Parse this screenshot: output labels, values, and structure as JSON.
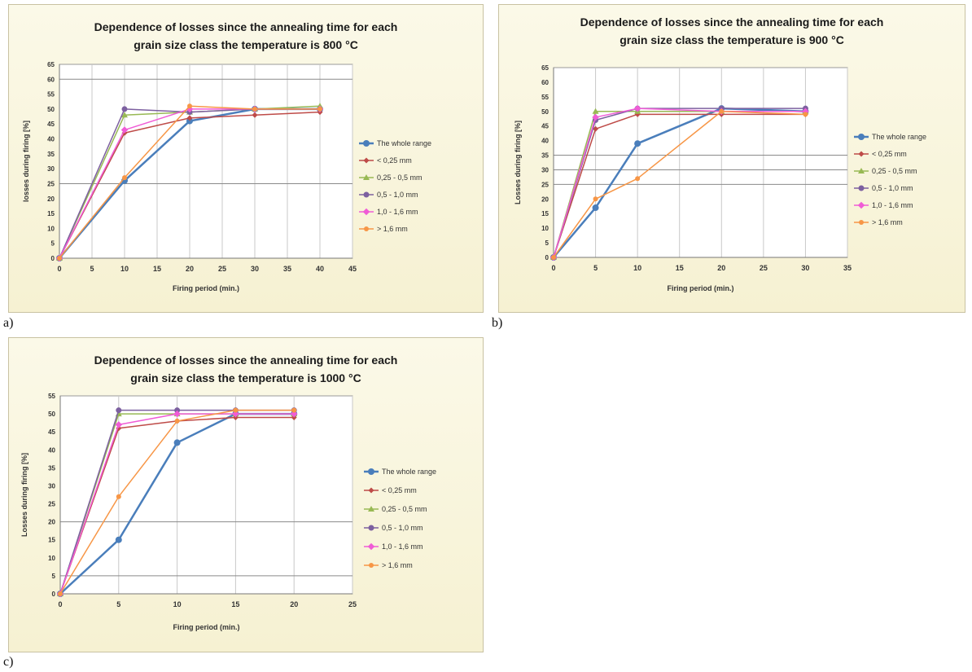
{
  "chart_data": [
    {
      "type": "line",
      "panel_label": "a)",
      "title": "Dependence of losses since the annealing time for each grain size class the temperature is 800 °C",
      "title_lines": [
        "Dependence of losses since the annealing time for each",
        "grain size class the temperature is 800 °C"
      ],
      "xlabel": "Firing period (min.)",
      "ylabel": "losses during firing [%]",
      "xlim": [
        0,
        45
      ],
      "xticks": [
        0,
        5,
        10,
        15,
        20,
        25,
        30,
        35,
        40,
        45
      ],
      "ylim": [
        0,
        65
      ],
      "yticks": [
        0,
        5,
        10,
        15,
        20,
        25,
        30,
        35,
        40,
        45,
        50,
        55,
        60,
        65
      ],
      "grid_lines_y": [
        25,
        60
      ],
      "legend": "right",
      "series": [
        {
          "name": "The whole range",
          "color": "#4a7ebb",
          "marker": "circle",
          "x": [
            0,
            10,
            20,
            30,
            40
          ],
          "y": [
            0,
            26,
            46,
            50,
            50
          ]
        },
        {
          "name": "< 0,25 mm",
          "color": "#be4b48",
          "marker": "diamond",
          "x": [
            0,
            10,
            20,
            30,
            40
          ],
          "y": [
            0,
            42,
            47,
            48,
            49
          ]
        },
        {
          "name": "0,25 - 0,5 mm",
          "color": "#98b954",
          "marker": "triangle",
          "x": [
            0,
            10,
            20,
            30,
            40
          ],
          "y": [
            0,
            48,
            49,
            50,
            51
          ]
        },
        {
          "name": "0,5 - 1,0 mm",
          "color": "#7d60a0",
          "marker": "cross",
          "x": [
            0,
            10,
            20,
            30,
            40
          ],
          "y": [
            0,
            50,
            49,
            50,
            50
          ]
        },
        {
          "name": "1,0 - 1,6 mm",
          "color": "#f05cd6",
          "marker": "star",
          "x": [
            0,
            10,
            20,
            30,
            40
          ],
          "y": [
            0,
            43,
            50,
            50,
            50
          ]
        },
        {
          "name": "> 1,6 mm",
          "color": "#f79646",
          "marker": "circle-small",
          "x": [
            0,
            10,
            20,
            30,
            40
          ],
          "y": [
            0,
            27,
            51,
            50,
            50
          ]
        }
      ]
    },
    {
      "type": "line",
      "panel_label": "b)",
      "title": "Dependence of losses since the annealing time for each grain size class the temperature is 900 °C",
      "title_lines": [
        "Dependence of losses since the annealing time for each",
        "grain size class the temperature is  900 °C"
      ],
      "xlabel": "Firing period (min.)",
      "ylabel": "Losses during firing [%]",
      "xlim": [
        0,
        35
      ],
      "xticks": [
        0,
        5,
        10,
        15,
        20,
        25,
        30,
        35
      ],
      "ylim": [
        0,
        65
      ],
      "yticks": [
        0,
        5,
        10,
        15,
        20,
        25,
        30,
        35,
        40,
        45,
        50,
        55,
        60,
        65
      ],
      "grid_lines_y": [
        25,
        30,
        35
      ],
      "legend": "right",
      "series": [
        {
          "name": "The whole range",
          "color": "#4a7ebb",
          "marker": "circle",
          "x": [
            0,
            5,
            10,
            20,
            30
          ],
          "y": [
            0,
            17,
            39,
            51,
            50
          ]
        },
        {
          "name": "< 0,25 mm",
          "color": "#be4b48",
          "marker": "diamond",
          "x": [
            0,
            5,
            10,
            20,
            30
          ],
          "y": [
            0,
            44,
            49,
            49,
            49
          ]
        },
        {
          "name": "0,25 - 0,5 mm",
          "color": "#98b954",
          "marker": "triangle",
          "x": [
            0,
            5,
            10,
            20,
            30
          ],
          "y": [
            0,
            50,
            50,
            50,
            50
          ]
        },
        {
          "name": "0,5 - 1,0 mm",
          "color": "#7d60a0",
          "marker": "cross",
          "x": [
            0,
            5,
            10,
            20,
            30
          ],
          "y": [
            0,
            47,
            51,
            51,
            51
          ]
        },
        {
          "name": "1,0 - 1,6 mm",
          "color": "#f05cd6",
          "marker": "star",
          "x": [
            0,
            5,
            10,
            20,
            30
          ],
          "y": [
            0,
            48,
            51,
            50,
            50
          ]
        },
        {
          "name": "> 1,6 mm",
          "color": "#f79646",
          "marker": "circle-small",
          "x": [
            0,
            5,
            10,
            20,
            30
          ],
          "y": [
            0,
            20,
            27,
            50,
            49
          ]
        }
      ]
    },
    {
      "type": "line",
      "panel_label": "c)",
      "title": "Dependence of losses since the annealing time for each grain size class the temperature is 1000 °C",
      "title_lines": [
        "Dependence of losses since the annealing time for each",
        "grain size class the temperature is 1000 °C"
      ],
      "xlabel": "Firing period (min.)",
      "ylabel": "Losses during firing [%]",
      "xlim": [
        0,
        25
      ],
      "xticks": [
        0,
        5,
        10,
        15,
        20,
        25
      ],
      "ylim": [
        0,
        55
      ],
      "yticks": [
        0,
        5,
        10,
        15,
        20,
        25,
        30,
        35,
        40,
        45,
        50,
        55
      ],
      "grid_lines_y": [
        5,
        20
      ],
      "legend": "right",
      "series": [
        {
          "name": "The whole range",
          "color": "#4a7ebb",
          "marker": "circle",
          "x": [
            0,
            5,
            10,
            15,
            20
          ],
          "y": [
            0,
            15,
            42,
            50,
            50
          ]
        },
        {
          "name": "< 0,25 mm",
          "color": "#be4b48",
          "marker": "diamond",
          "x": [
            0,
            5,
            10,
            15,
            20
          ],
          "y": [
            0,
            46,
            48,
            49,
            49
          ]
        },
        {
          "name": "0,25 - 0,5 mm",
          "color": "#98b954",
          "marker": "triangle",
          "x": [
            0,
            5,
            10,
            15,
            20
          ],
          "y": [
            0,
            50,
            50,
            50,
            50
          ]
        },
        {
          "name": "0,5 - 1,0 mm",
          "color": "#7d60a0",
          "marker": "cross",
          "x": [
            0,
            5,
            10,
            15,
            20
          ],
          "y": [
            0,
            51,
            51,
            51,
            51
          ]
        },
        {
          "name": "1,0 - 1,6 mm",
          "color": "#f05cd6",
          "marker": "star",
          "x": [
            0,
            5,
            10,
            15,
            20
          ],
          "y": [
            0,
            47,
            50,
            50,
            50
          ]
        },
        {
          "name": "> 1,6 mm",
          "color": "#f79646",
          "marker": "circle-small",
          "x": [
            0,
            5,
            10,
            15,
            20
          ],
          "y": [
            0,
            27,
            48,
            51,
            51
          ]
        }
      ]
    }
  ]
}
